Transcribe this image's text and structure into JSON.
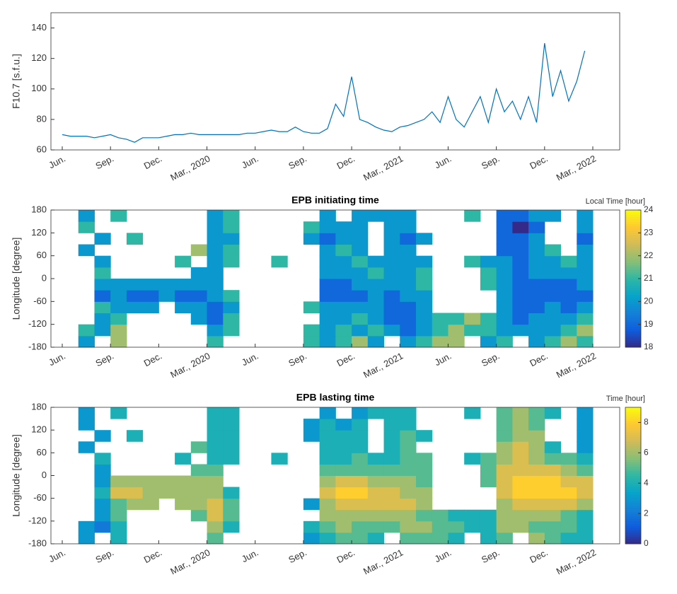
{
  "chart_data": [
    {
      "type": "line",
      "ylabel": "F10.7 [s.f.u.]",
      "color": "#0072bd",
      "categories": [
        "Jun.",
        null,
        null,
        null,
        null,
        null,
        "Sep.",
        null,
        null,
        null,
        null,
        null,
        "Dec.",
        null,
        null,
        null,
        null,
        null,
        "Mar., 2020",
        null,
        null,
        null,
        null,
        null,
        "Jun.",
        null,
        null,
        null,
        null,
        null,
        "Sep.",
        null,
        null,
        null,
        null,
        null,
        "Dec.",
        null,
        null,
        null,
        null,
        null,
        "Mar., 2021",
        null,
        null,
        null,
        null,
        null,
        "Jun.",
        null,
        null,
        null,
        null,
        null,
        "Sep.",
        null,
        null,
        null,
        null,
        null,
        "Dec.",
        null,
        null,
        null,
        null,
        null,
        "Mar., 2022",
        null
      ],
      "values": [
        70,
        69,
        69,
        69,
        68,
        69,
        70,
        68,
        67,
        65,
        68,
        68,
        68,
        69,
        70,
        70,
        71,
        70,
        70,
        70,
        70,
        70,
        70,
        71,
        71,
        72,
        73,
        72,
        72,
        75,
        72,
        71,
        71,
        74,
        90,
        82,
        108,
        80,
        78,
        75,
        73,
        72,
        75,
        76,
        78,
        80,
        85,
        78,
        95,
        80,
        75,
        85,
        95,
        78,
        100,
        85,
        92,
        80,
        95,
        78,
        130,
        95,
        112,
        92,
        105,
        125,
        null,
        null
      ],
      "ylim": [
        60,
        150
      ],
      "yticks": [
        60,
        80,
        100,
        120,
        140
      ]
    },
    {
      "type": "heatmap",
      "title": "EPB initiating time",
      "ylabel": "Longitude [degree]",
      "colorbar_label": "Local Time [hour]",
      "categories": [
        "Jun.",
        null,
        null,
        "Sep.",
        null,
        null,
        "Dec.",
        null,
        null,
        "Mar., 2020",
        null,
        null,
        "Jun.",
        null,
        null,
        "Sep.",
        null,
        null,
        "Dec.",
        null,
        null,
        "Mar., 2021",
        null,
        null,
        "Jun.",
        null,
        null,
        "Sep.",
        null,
        null,
        "Dec.",
        null,
        null,
        "Mar., 2022"
      ],
      "ylim": [
        -180,
        180
      ],
      "yticks": [
        -180,
        -120,
        -60,
        0,
        60,
        120,
        180
      ],
      "clim": [
        18,
        24
      ],
      "cticks": [
        18,
        19,
        20,
        21,
        22,
        23,
        24
      ],
      "values": [
        [
          null,
          20,
          null,
          22,
          null,
          null,
          null,
          null,
          null,
          21,
          null,
          null,
          null,
          null,
          null,
          21,
          20,
          21,
          22,
          20,
          null,
          20,
          21,
          22,
          22,
          null,
          20,
          21,
          null,
          20,
          21,
          22,
          21,
          null
        ],
        [
          null,
          21,
          20,
          22,
          null,
          null,
          null,
          null,
          null,
          20,
          21,
          null,
          null,
          null,
          null,
          21,
          20,
          21,
          20,
          21,
          20,
          19,
          20,
          21,
          22,
          21,
          21,
          20,
          20,
          20,
          20,
          21,
          22,
          null
        ],
        [
          null,
          null,
          20,
          21,
          null,
          null,
          null,
          null,
          20,
          19,
          21,
          null,
          null,
          null,
          null,
          null,
          20,
          20,
          21,
          20,
          19,
          19,
          20,
          21,
          21,
          22,
          21,
          20,
          19,
          20,
          20,
          20,
          21,
          null
        ],
        [
          null,
          null,
          21,
          20,
          20,
          20,
          null,
          20,
          20,
          19,
          20,
          null,
          null,
          null,
          null,
          21,
          20,
          20,
          20,
          20,
          19,
          19,
          20,
          null,
          null,
          null,
          null,
          20,
          19,
          19,
          20,
          19,
          20,
          null
        ],
        [
          null,
          null,
          19,
          20,
          19,
          19,
          20,
          19,
          19,
          20,
          21,
          null,
          null,
          null,
          null,
          null,
          19,
          19,
          19,
          20,
          19,
          20,
          20,
          null,
          null,
          null,
          null,
          20,
          19,
          19,
          19,
          19,
          19,
          null
        ],
        [
          null,
          null,
          20,
          20,
          20,
          20,
          20,
          20,
          20,
          20,
          null,
          null,
          null,
          null,
          null,
          null,
          19,
          19,
          20,
          20,
          20,
          20,
          21,
          null,
          null,
          null,
          21,
          20,
          19,
          19,
          19,
          19,
          20,
          null
        ],
        [
          null,
          null,
          21,
          null,
          null,
          null,
          null,
          null,
          20,
          20,
          null,
          null,
          null,
          null,
          null,
          null,
          20,
          20,
          20,
          21,
          20,
          20,
          21,
          null,
          null,
          null,
          21,
          20,
          19,
          20,
          20,
          20,
          20,
          null
        ],
        [
          null,
          null,
          20,
          null,
          null,
          null,
          null,
          21,
          null,
          20,
          21,
          null,
          null,
          21,
          null,
          null,
          20,
          20,
          21,
          20,
          20,
          20,
          20,
          null,
          null,
          21,
          20,
          20,
          19,
          20,
          20,
          21,
          20,
          null
        ],
        [
          null,
          20,
          null,
          null,
          null,
          null,
          null,
          null,
          22,
          20,
          21,
          null,
          null,
          null,
          null,
          null,
          20,
          21,
          20,
          null,
          20,
          20,
          null,
          null,
          null,
          null,
          null,
          19,
          19,
          20,
          21,
          null,
          20,
          null
        ],
        [
          null,
          null,
          20,
          null,
          21,
          null,
          null,
          null,
          null,
          20,
          20,
          null,
          null,
          null,
          null,
          20,
          19,
          20,
          20,
          null,
          20,
          19,
          20,
          null,
          null,
          null,
          null,
          19,
          19,
          20,
          null,
          null,
          19,
          null
        ],
        [
          null,
          21,
          null,
          null,
          null,
          null,
          null,
          null,
          null,
          20,
          21,
          null,
          null,
          null,
          null,
          21,
          20,
          20,
          20,
          null,
          20,
          20,
          null,
          null,
          null,
          null,
          null,
          19,
          18,
          19,
          null,
          null,
          20,
          null
        ],
        [
          null,
          20,
          null,
          21,
          null,
          null,
          null,
          null,
          null,
          20,
          21,
          null,
          null,
          null,
          null,
          null,
          20,
          null,
          20,
          20,
          20,
          20,
          null,
          null,
          null,
          21,
          null,
          19,
          19,
          20,
          20,
          null,
          20,
          null
        ]
      ]
    },
    {
      "type": "heatmap",
      "title": "EPB lasting time",
      "ylabel": "Longitude [degree]",
      "colorbar_label": "Time [hour]",
      "categories": [
        "Jun.",
        null,
        null,
        "Sep.",
        null,
        null,
        "Dec.",
        null,
        null,
        "Mar., 2020",
        null,
        null,
        "Jun.",
        null,
        null,
        "Sep.",
        null,
        null,
        "Dec.",
        null,
        null,
        "Mar., 2021",
        null,
        null,
        "Jun.",
        null,
        null,
        "Sep.",
        null,
        null,
        "Dec.",
        null,
        null,
        "Mar., 2022"
      ],
      "ylim": [
        -180,
        180
      ],
      "yticks": [
        -180,
        -120,
        -60,
        0,
        60,
        120,
        180
      ],
      "clim": [
        0,
        9
      ],
      "cticks": [
        0,
        2,
        4,
        6,
        8
      ],
      "values": [
        [
          null,
          3,
          null,
          4,
          null,
          null,
          null,
          null,
          null,
          5,
          null,
          null,
          null,
          null,
          null,
          3,
          4,
          5,
          5,
          4,
          null,
          5,
          5,
          5,
          4,
          null,
          4,
          5,
          null,
          6,
          5,
          4,
          4,
          null
        ],
        [
          null,
          3,
          2,
          4,
          null,
          null,
          null,
          null,
          null,
          6,
          4,
          null,
          null,
          null,
          null,
          4,
          5,
          6,
          5,
          5,
          5,
          6,
          6,
          5,
          5,
          4,
          4,
          6,
          6,
          5,
          5,
          5,
          4,
          null
        ],
        [
          null,
          null,
          3,
          5,
          null,
          null,
          null,
          null,
          5,
          7,
          5,
          null,
          null,
          null,
          null,
          null,
          6,
          6,
          6,
          6,
          6,
          6,
          5,
          5,
          4,
          4,
          4,
          6,
          6,
          6,
          6,
          5,
          4,
          null
        ],
        [
          null,
          null,
          3,
          5,
          6,
          6,
          null,
          6,
          6,
          7,
          5,
          null,
          null,
          null,
          null,
          3,
          6,
          7,
          7,
          7,
          7,
          7,
          6,
          null,
          null,
          null,
          null,
          6,
          7,
          7,
          7,
          7,
          6,
          null
        ],
        [
          null,
          null,
          4,
          7,
          7,
          6,
          6,
          6,
          6,
          6,
          4,
          null,
          null,
          null,
          null,
          null,
          7,
          8,
          8,
          7,
          7,
          6,
          6,
          null,
          null,
          null,
          null,
          7,
          8,
          8,
          8,
          8,
          7,
          null
        ],
        [
          null,
          null,
          3,
          6,
          6,
          6,
          6,
          6,
          6,
          6,
          null,
          null,
          null,
          null,
          null,
          null,
          6,
          7,
          7,
          6,
          6,
          6,
          5,
          null,
          null,
          null,
          5,
          7,
          8,
          8,
          8,
          7,
          7,
          null
        ],
        [
          null,
          null,
          3,
          null,
          null,
          null,
          null,
          null,
          5,
          5,
          null,
          null,
          null,
          null,
          null,
          null,
          5,
          5,
          5,
          5,
          5,
          5,
          5,
          null,
          null,
          null,
          5,
          7,
          7,
          7,
          7,
          6,
          5,
          null
        ],
        [
          null,
          null,
          4,
          null,
          null,
          null,
          null,
          4,
          null,
          4,
          4,
          null,
          null,
          4,
          null,
          null,
          4,
          4,
          5,
          4,
          4,
          5,
          5,
          null,
          null,
          4,
          5,
          6,
          7,
          6,
          5,
          5,
          4,
          null
        ],
        [
          null,
          3,
          null,
          null,
          null,
          null,
          null,
          null,
          5,
          4,
          4,
          null,
          null,
          null,
          null,
          null,
          4,
          4,
          4,
          null,
          4,
          5,
          null,
          null,
          null,
          null,
          null,
          6,
          7,
          6,
          4,
          null,
          3,
          null
        ],
        [
          null,
          null,
          3,
          null,
          4,
          null,
          null,
          null,
          null,
          4,
          4,
          null,
          null,
          null,
          null,
          3,
          4,
          4,
          4,
          null,
          4,
          5,
          4,
          null,
          null,
          null,
          null,
          5,
          6,
          6,
          null,
          null,
          3,
          null
        ],
        [
          null,
          3,
          null,
          null,
          null,
          null,
          null,
          null,
          null,
          4,
          4,
          null,
          null,
          null,
          null,
          3,
          4,
          3,
          4,
          null,
          4,
          4,
          null,
          null,
          null,
          null,
          null,
          5,
          6,
          5,
          null,
          null,
          3,
          null
        ],
        [
          null,
          3,
          null,
          4,
          null,
          null,
          null,
          null,
          null,
          4,
          4,
          null,
          null,
          null,
          null,
          null,
          3,
          null,
          3,
          4,
          4,
          4,
          null,
          null,
          null,
          4,
          null,
          5,
          6,
          5,
          4,
          null,
          3,
          null
        ]
      ]
    }
  ]
}
